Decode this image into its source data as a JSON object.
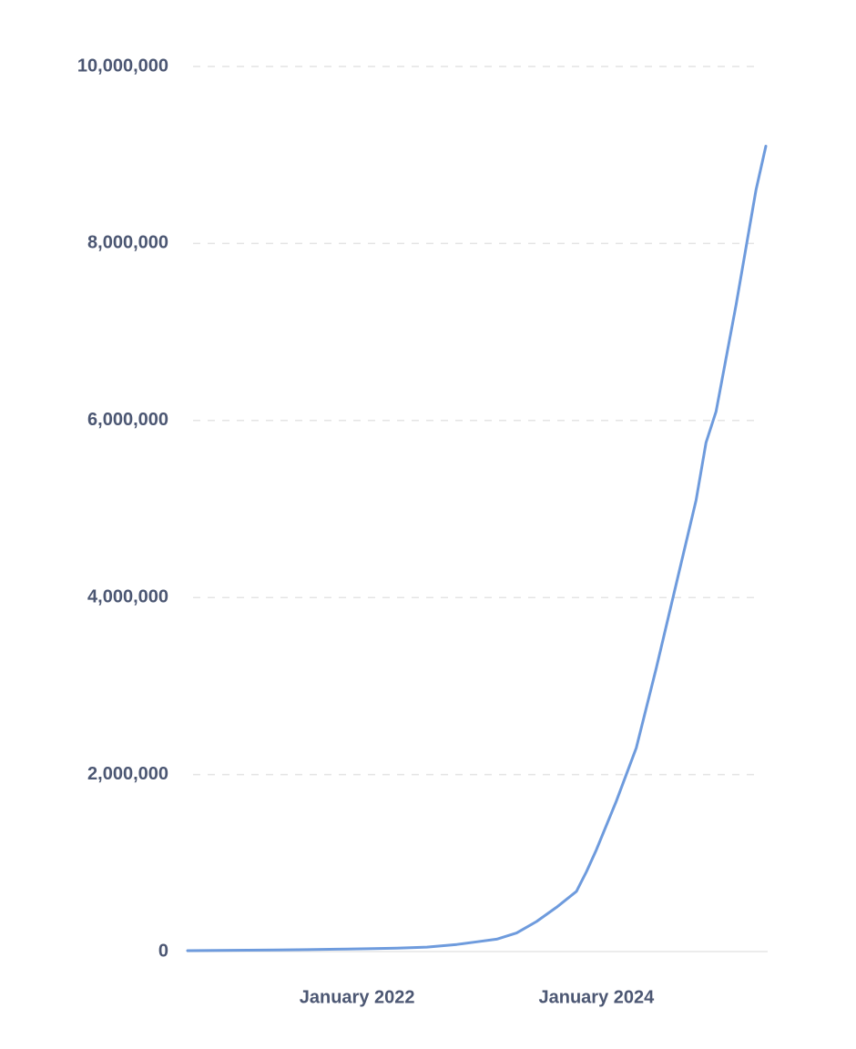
{
  "chart_data": {
    "type": "line",
    "x": [
      "2020-08",
      "2020-11",
      "2021-02",
      "2021-05",
      "2021-08",
      "2021-11",
      "2022-02",
      "2022-05",
      "2022-08",
      "2022-11",
      "2023-01",
      "2023-03",
      "2023-05",
      "2023-07",
      "2023-09",
      "2023-11",
      "2023-12",
      "2024-01",
      "2024-03",
      "2024-05",
      "2024-07",
      "2024-09",
      "2024-11",
      "2024-12",
      "2025-01",
      "2025-03",
      "2025-05",
      "2025-06"
    ],
    "series": [
      {
        "color": "#6e9bdd",
        "values": [
          10000,
          12000,
          15000,
          18000,
          22000,
          27000,
          32000,
          38000,
          50000,
          80000,
          110000,
          140000,
          210000,
          340000,
          500000,
          680000,
          900000,
          1150000,
          1700000,
          2300000,
          3200000,
          4150000,
          5100000,
          5750000,
          6100000,
          7300000,
          8600000,
          9100000
        ]
      }
    ],
    "xlim": [
      "2020-08",
      "2025-06"
    ],
    "xticks": [
      {
        "value": "2022-01",
        "label": "January 2022"
      },
      {
        "value": "2024-01",
        "label": "January 2024"
      }
    ],
    "ylim": [
      0,
      10000000
    ],
    "yticks": [
      0,
      {
        "value": 2000000,
        "label": "2,000,000"
      },
      {
        "value": 4000000,
        "label": "4,000,000"
      },
      {
        "value": 6000000,
        "label": "6,000,000"
      },
      {
        "value": 8000000,
        "label": "8,000,000"
      },
      {
        "value": 10000000,
        "label": "10,000,000"
      }
    ],
    "grid": true
  }
}
